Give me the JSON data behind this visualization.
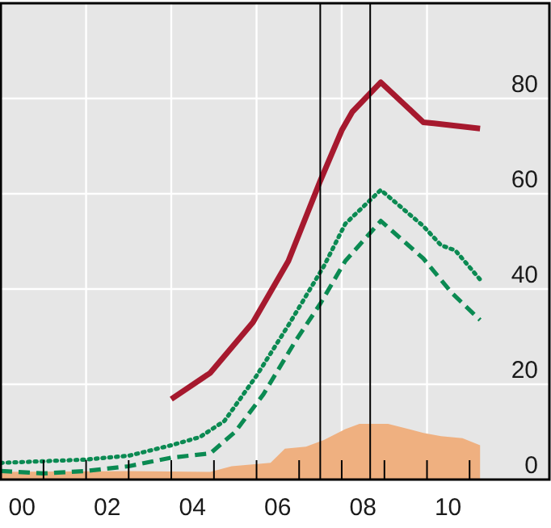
{
  "chart_data": {
    "type": "line",
    "xlim": [
      "2000-01-01",
      "2012-11-15"
    ],
    "xticks": [
      {
        "value": "2000-07-01",
        "label": "00"
      },
      {
        "value": "2002-07-01",
        "label": "02"
      },
      {
        "value": "2004-07-01",
        "label": "04"
      },
      {
        "value": "2006-07-01",
        "label": "06"
      },
      {
        "value": "2008-07-01",
        "label": "08"
      },
      {
        "value": "2010-07-01",
        "label": "10"
      },
      {
        "value": "2001",
        "label": null
      },
      {
        "value": "2002",
        "label": null
      },
      {
        "value": "2003",
        "label": null
      },
      {
        "value": "2004",
        "label": null
      },
      {
        "value": "2005",
        "label": null
      },
      {
        "value": "2006",
        "label": null
      },
      {
        "value": "2007",
        "label": null
      },
      {
        "value": "2008",
        "label": null
      },
      {
        "value": "2009",
        "label": null
      },
      {
        "value": "2010",
        "label": null
      },
      {
        "value": "2011",
        "label": null
      }
    ],
    "ylim": [
      0,
      100
    ],
    "yticks": [
      0,
      20,
      40,
      60,
      80
    ],
    "grid": true,
    "ref_lines": [
      {
        "axis": "x",
        "value": "2007-07",
        "color": "#000000"
      },
      {
        "axis": "x",
        "value": "2008-09",
        "color": "#000000"
      }
    ],
    "series": [
      {
        "type": "area",
        "color": "#efb080",
        "x": [
          "2000-01",
          "2003-01",
          "2004-12",
          "2005-06",
          "2006-05",
          "2006-09",
          "2007-03",
          "2007-08",
          "2008-02",
          "2008-06",
          "2009-02",
          "2009-12",
          "2010-05",
          "2010-11",
          "2011-04"
        ],
        "values": [
          1.6,
          1.8,
          1.6,
          2.8,
          3.5,
          6.5,
          6.9,
          8.3,
          10.6,
          11.7,
          11.7,
          9.8,
          9.1,
          8.7,
          7.2
        ]
      },
      {
        "line_style": "dashed",
        "color": "#0b8a52",
        "x": [
          "2000-01",
          "2001-01",
          "2002-01",
          "2003-01",
          "2004-01",
          "2004-12",
          "2005-07",
          "2006-03",
          "2006-12",
          "2007-07",
          "2008-02",
          "2008-12",
          "2009-12",
          "2010-08",
          "2011-04"
        ],
        "values": [
          1.8,
          1.3,
          1.8,
          2.8,
          4.6,
          5.5,
          10,
          17.9,
          29.1,
          36.9,
          45.9,
          54.3,
          46.4,
          39.2,
          33.5
        ]
      },
      {
        "line_style": "dotted",
        "color": "#0b8a52",
        "x": [
          "2000-01",
          "2002-01",
          "2003-01",
          "2004-01",
          "2004-09",
          "2005-04",
          "2006-01",
          "2006-10",
          "2007-08",
          "2008-02",
          "2008-12",
          "2009-12",
          "2010-05",
          "2010-09",
          "2011-04"
        ],
        "values": [
          3.5,
          4.2,
          5,
          7.2,
          8.9,
          12.3,
          21.8,
          32.4,
          44.8,
          53.7,
          60.8,
          53.2,
          49.2,
          48.1,
          42
        ]
      },
      {
        "line_style": "solid",
        "color": "#a6192e",
        "x": [
          "2004-01",
          "2004-12",
          "2005-12",
          "2006-10",
          "2007-07",
          "2008-01",
          "2008-04",
          "2008-12",
          "2009-12",
          "2010-03",
          "2011-04"
        ],
        "values": [
          16.9,
          22.4,
          33,
          45.9,
          62.7,
          73.3,
          77.2,
          83.4,
          75,
          74.8,
          73.7
        ]
      }
    ]
  }
}
